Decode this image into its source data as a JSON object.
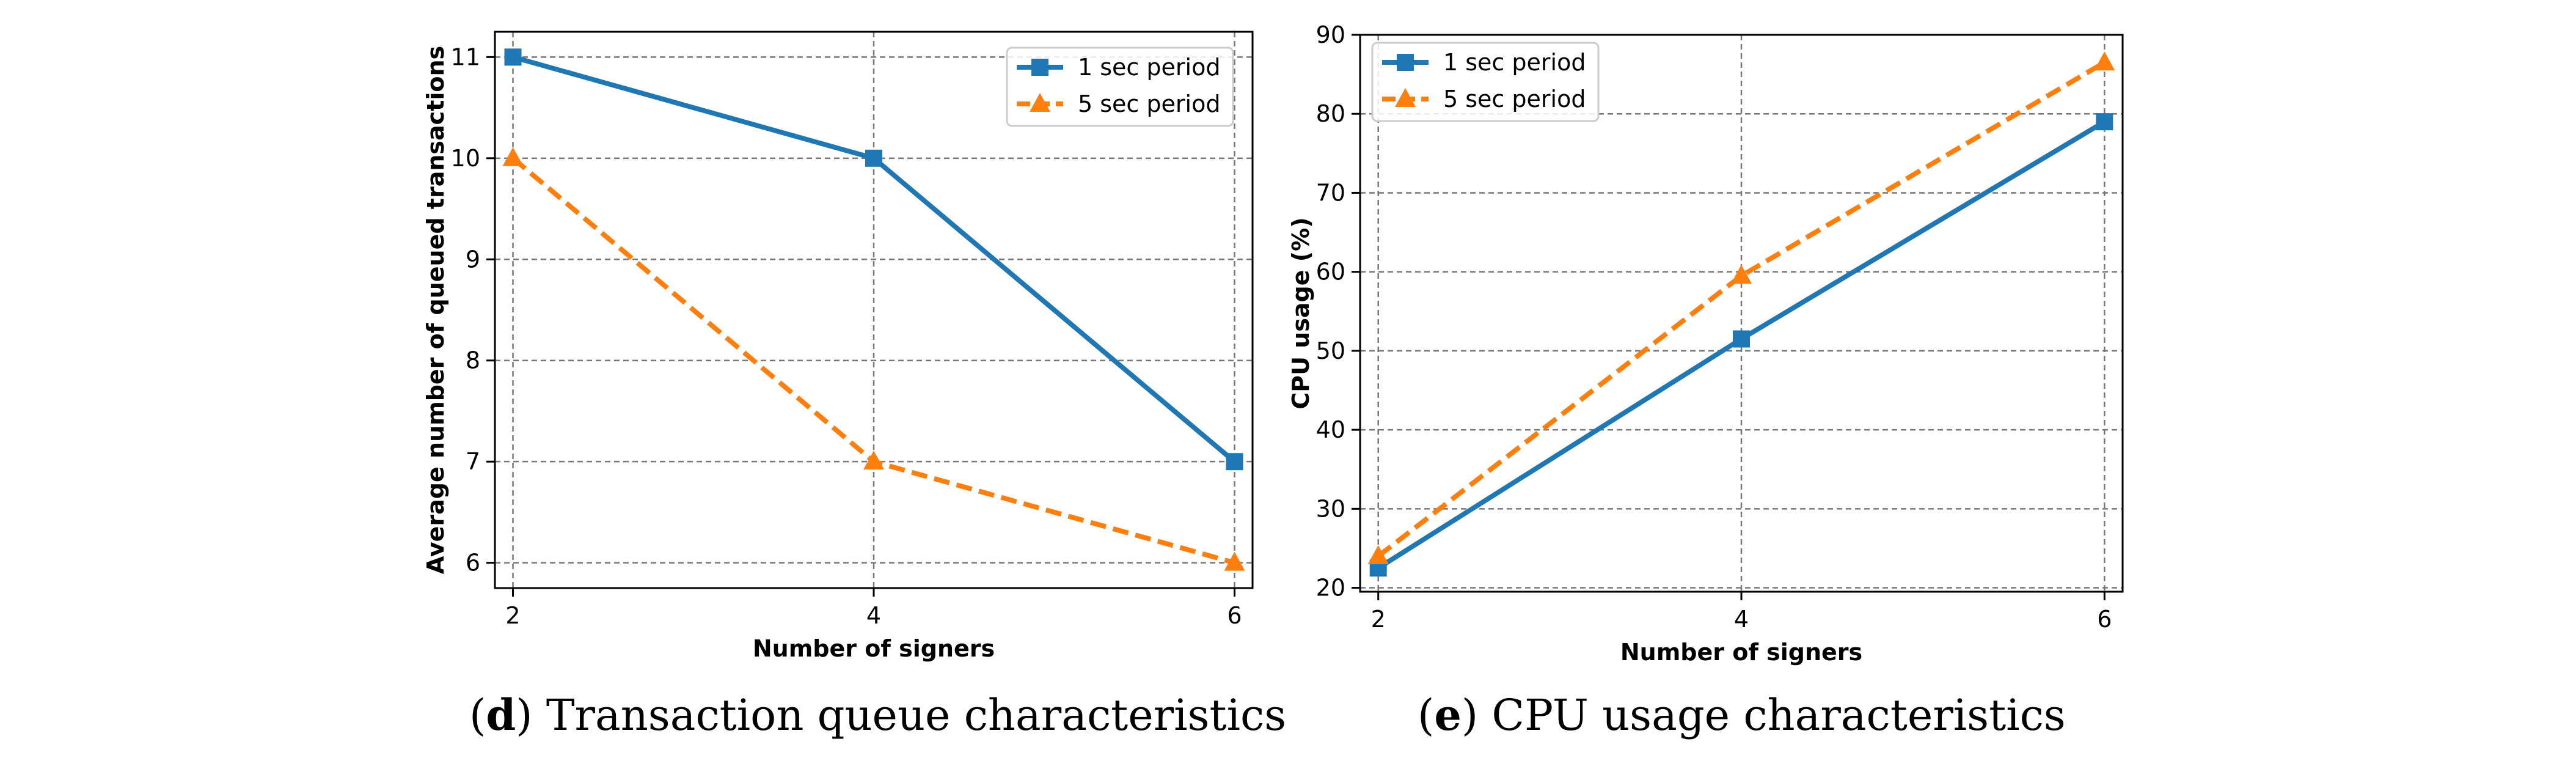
{
  "figure": {
    "captions": [
      {
        "open": "(",
        "letter": "d",
        "close": ")",
        "text": " Transaction queue characteristics"
      },
      {
        "open": "(",
        "letter": "e",
        "close": ")",
        "text": " CPU usage characteristics"
      }
    ]
  },
  "chart_data": [
    {
      "type": "line",
      "title": "",
      "xlabel": "Number of signers",
      "ylabel": "Average number of queued transactions",
      "x": [
        2,
        4,
        6
      ],
      "xticks": [
        2,
        4,
        6
      ],
      "xlim": [
        1.9,
        6.1
      ],
      "yticks": [
        6,
        7,
        8,
        9,
        10,
        11
      ],
      "ylim": [
        5.75,
        11.25
      ],
      "grid": true,
      "legend_position": "top-right",
      "series": [
        {
          "name": "1 sec period",
          "values": [
            11,
            10,
            7
          ],
          "color": "#1f77b4",
          "marker": "square",
          "line": "solid"
        },
        {
          "name": "5 sec period",
          "values": [
            10,
            7,
            6
          ],
          "color": "#ff7f0e",
          "marker": "triangle",
          "line": "dashed"
        }
      ]
    },
    {
      "type": "line",
      "title": "",
      "xlabel": "Number of signers",
      "ylabel": "CPU usage (%)",
      "x": [
        2,
        4,
        6
      ],
      "xticks": [
        2,
        4,
        6
      ],
      "xlim": [
        1.9,
        6.1
      ],
      "yticks": [
        20,
        30,
        40,
        50,
        60,
        70,
        80,
        90
      ],
      "ylim": [
        19.5,
        90
      ],
      "grid": true,
      "legend_position": "top-left",
      "series": [
        {
          "name": "1 sec period",
          "values": [
            22.5,
            51.5,
            79
          ],
          "color": "#1f77b4",
          "marker": "square",
          "line": "solid"
        },
        {
          "name": "5 sec period",
          "values": [
            24,
            59.5,
            86.5
          ],
          "color": "#ff7f0e",
          "marker": "triangle",
          "line": "dashed"
        }
      ]
    }
  ]
}
